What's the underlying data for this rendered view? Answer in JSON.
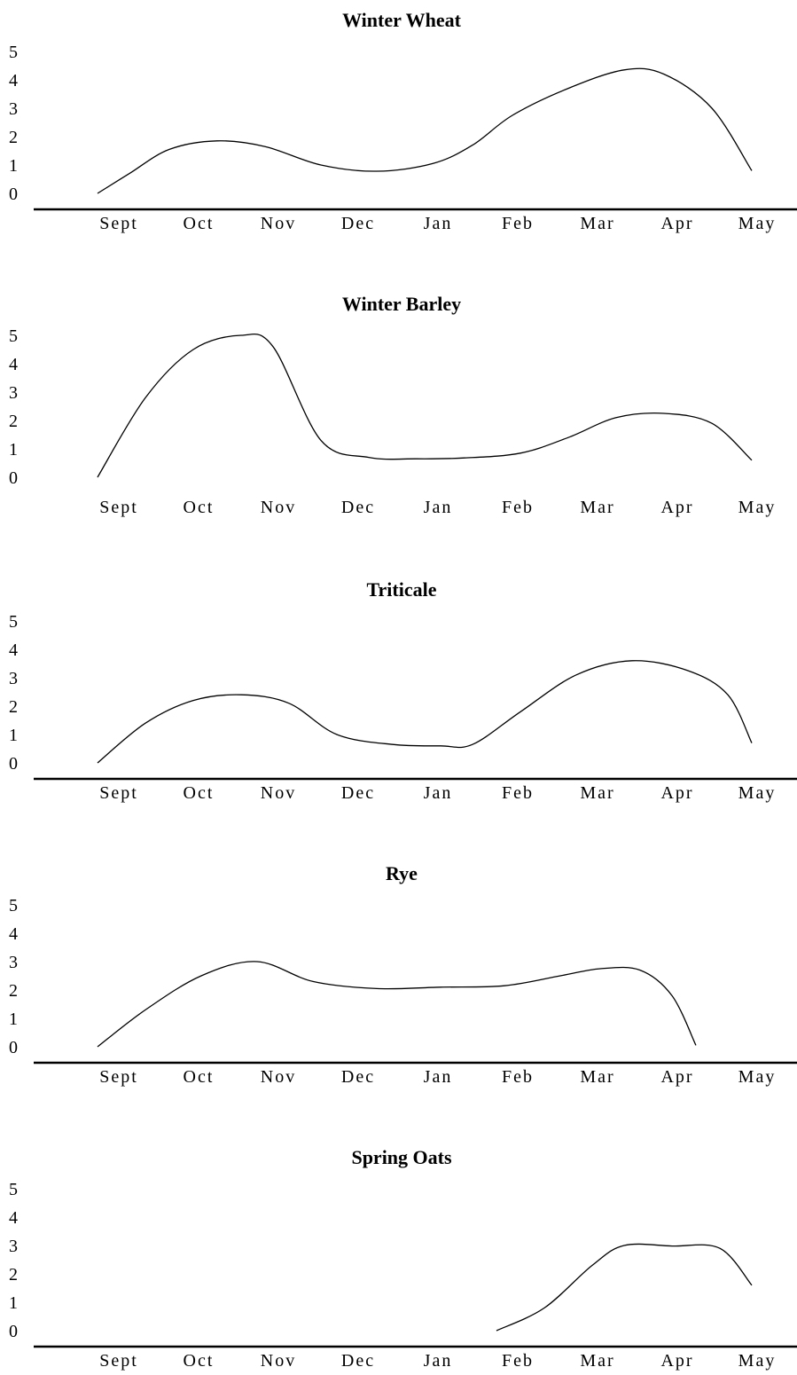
{
  "chart_data": [
    {
      "type": "line",
      "title": "Winter Wheat",
      "categories": [
        "Sept",
        "Oct",
        "Nov",
        "Dec",
        "Jan",
        "Feb",
        "Mar",
        "Apr",
        "May"
      ],
      "yticks": [
        "0",
        "1",
        "2",
        "3",
        "4",
        "5"
      ],
      "ylim": [
        0,
        5
      ],
      "baseline": true,
      "points": [
        [
          0,
          0
        ],
        [
          0.4,
          0.7
        ],
        [
          0.9,
          1.55
        ],
        [
          1.5,
          1.85
        ],
        [
          2.1,
          1.65
        ],
        [
          2.8,
          1.0
        ],
        [
          3.5,
          0.78
        ],
        [
          4.2,
          1.05
        ],
        [
          4.7,
          1.7
        ],
        [
          5.2,
          2.75
        ],
        [
          5.9,
          3.7
        ],
        [
          6.6,
          4.35
        ],
        [
          7.1,
          4.2
        ],
        [
          7.7,
          3.0
        ],
        [
          8.2,
          0.8
        ]
      ],
      "color": "#000000"
    },
    {
      "type": "line",
      "title": "Winter Barley",
      "categories": [
        "Sept",
        "Oct",
        "Nov",
        "Dec",
        "Jan",
        "Feb",
        "Mar",
        "Apr",
        "May"
      ],
      "yticks": [
        "0",
        "1",
        "2",
        "3",
        "4",
        "5"
      ],
      "ylim": [
        0,
        5
      ],
      "baseline": false,
      "points": [
        [
          0,
          0
        ],
        [
          0.6,
          2.8
        ],
        [
          1.2,
          4.5
        ],
        [
          1.8,
          5.0
        ],
        [
          2.2,
          4.6
        ],
        [
          2.8,
          1.3
        ],
        [
          3.4,
          0.7
        ],
        [
          4.0,
          0.65
        ],
        [
          4.6,
          0.68
        ],
        [
          5.3,
          0.85
        ],
        [
          5.9,
          1.4
        ],
        [
          6.5,
          2.1
        ],
        [
          7.1,
          2.25
        ],
        [
          7.7,
          1.9
        ],
        [
          8.2,
          0.6
        ]
      ],
      "color": "#000000"
    },
    {
      "type": "line",
      "title": "Triticale",
      "categories": [
        "Sept",
        "Oct",
        "Nov",
        "Dec",
        "Jan",
        "Feb",
        "Mar",
        "Apr",
        "May"
      ],
      "yticks": [
        "0",
        "1",
        "2",
        "3",
        "4",
        "5"
      ],
      "ylim": [
        0,
        5
      ],
      "baseline": true,
      "points": [
        [
          0,
          0
        ],
        [
          0.6,
          1.4
        ],
        [
          1.2,
          2.2
        ],
        [
          1.8,
          2.4
        ],
        [
          2.4,
          2.1
        ],
        [
          3.0,
          1.0
        ],
        [
          3.7,
          0.65
        ],
        [
          4.3,
          0.6
        ],
        [
          4.7,
          0.65
        ],
        [
          5.3,
          1.8
        ],
        [
          6.0,
          3.1
        ],
        [
          6.7,
          3.6
        ],
        [
          7.4,
          3.25
        ],
        [
          7.9,
          2.4
        ],
        [
          8.2,
          0.7
        ]
      ],
      "color": "#000000"
    },
    {
      "type": "line",
      "title": "Rye",
      "categories": [
        "Sept",
        "Oct",
        "Nov",
        "Dec",
        "Jan",
        "Feb",
        "Mar",
        "Apr",
        "May"
      ],
      "yticks": [
        "0",
        "1",
        "2",
        "3",
        "4",
        "5"
      ],
      "ylim": [
        0,
        5
      ],
      "baseline": true,
      "points": [
        [
          0,
          0
        ],
        [
          0.6,
          1.3
        ],
        [
          1.3,
          2.5
        ],
        [
          2.0,
          3.0
        ],
        [
          2.7,
          2.3
        ],
        [
          3.5,
          2.05
        ],
        [
          4.3,
          2.1
        ],
        [
          5.1,
          2.15
        ],
        [
          5.8,
          2.5
        ],
        [
          6.3,
          2.75
        ],
        [
          6.8,
          2.7
        ],
        [
          7.2,
          1.8
        ],
        [
          7.5,
          0.05
        ]
      ],
      "color": "#000000"
    },
    {
      "type": "line",
      "title": "Spring Oats",
      "categories": [
        "Sept",
        "Oct",
        "Nov",
        "Dec",
        "Jan",
        "Feb",
        "Mar",
        "Apr",
        "May"
      ],
      "yticks": [
        "0",
        "1",
        "2",
        "3",
        "4",
        "5"
      ],
      "ylim": [
        0,
        5
      ],
      "baseline": true,
      "points": [
        [
          5.0,
          0
        ],
        [
          5.6,
          0.8
        ],
        [
          6.2,
          2.3
        ],
        [
          6.6,
          3.0
        ],
        [
          7.2,
          2.98
        ],
        [
          7.8,
          2.9
        ],
        [
          8.2,
          1.6
        ]
      ],
      "color": "#000000"
    }
  ]
}
